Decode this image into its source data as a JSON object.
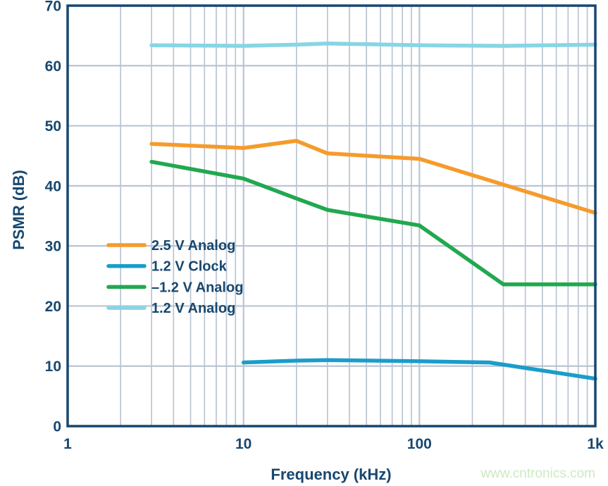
{
  "page": {
    "background": "#ffffff"
  },
  "colors": {
    "navy": "#17476f",
    "grid": "#bac5d3",
    "frame": "#17476f"
  },
  "watermark": {
    "text": "www.cntronics.com",
    "color": "#cceac0"
  },
  "chart_data": {
    "type": "line",
    "x_scale": "log",
    "title": "",
    "xlabel": "Frequency (kHz)",
    "ylabel": "PSMR  (dB)",
    "xlim": [
      1,
      1000
    ],
    "ylim": [
      0,
      70
    ],
    "x_ticks": [
      {
        "value": 1,
        "label": "1"
      },
      {
        "value": 10,
        "label": "10"
      },
      {
        "value": 100,
        "label": "100"
      },
      {
        "value": 1000,
        "label": "1k"
      }
    ],
    "y_ticks": [
      {
        "value": 0,
        "label": "0"
      },
      {
        "value": 10,
        "label": "10"
      },
      {
        "value": 20,
        "label": "20"
      },
      {
        "value": 30,
        "label": "30"
      },
      {
        "value": 40,
        "label": "40"
      },
      {
        "value": 50,
        "label": "50"
      },
      {
        "value": 60,
        "label": "60"
      },
      {
        "value": 70,
        "label": "70"
      }
    ],
    "grid": "on",
    "grid_minor_log_x": true,
    "legend_position": "inside-left-middle",
    "series": [
      {
        "name": "2.5 V Analog",
        "color": "#f59b2c",
        "points": [
          [
            3,
            47.0
          ],
          [
            10,
            46.3
          ],
          [
            20,
            47.5
          ],
          [
            30,
            45.4
          ],
          [
            100,
            44.5
          ],
          [
            1000,
            35.5
          ]
        ]
      },
      {
        "name": "1.2 V Clock",
        "color": "#1a9dca",
        "points": [
          [
            10,
            10.6
          ],
          [
            20,
            10.9
          ],
          [
            30,
            11.0
          ],
          [
            100,
            10.8
          ],
          [
            250,
            10.6
          ],
          [
            1000,
            7.9
          ]
        ]
      },
      {
        "name": "–1.2 V Analog",
        "color": "#22a84f",
        "points": [
          [
            3,
            44.0
          ],
          [
            10,
            41.2
          ],
          [
            20,
            37.9
          ],
          [
            30,
            36.0
          ],
          [
            100,
            33.4
          ],
          [
            300,
            23.6
          ],
          [
            1000,
            23.6
          ]
        ]
      },
      {
        "name": "1.2 V Analog",
        "color": "#87d5e5",
        "points": [
          [
            3,
            63.4
          ],
          [
            10,
            63.3
          ],
          [
            20,
            63.5
          ],
          [
            30,
            63.7
          ],
          [
            100,
            63.4
          ],
          [
            300,
            63.3
          ],
          [
            1000,
            63.5
          ]
        ]
      }
    ]
  }
}
